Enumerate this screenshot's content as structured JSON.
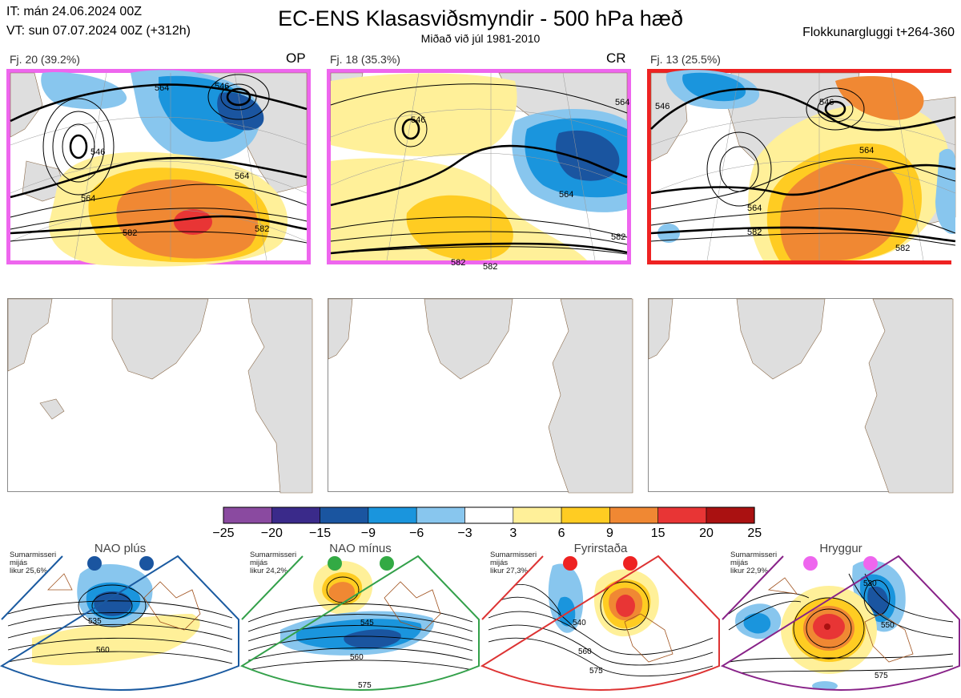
{
  "header": {
    "it_line": "IT: mán 24.06.2024 00Z",
    "vt_line": "VT: sun 07.07.2024 00Z  (+312h)",
    "title": "EC-ENS Klasasviðsmyndir - 500 hPa hæð",
    "subtitle": "Miðað við júl 1981-2010",
    "window": "Flokkunargluggi t+264-360"
  },
  "clusters": [
    {
      "label": "Fj. 20 (39.2%)",
      "tag": "OP",
      "border_color": "#ee66ee",
      "contour_labels": [
        "564",
        "546",
        "564",
        "546",
        "564",
        "582",
        "582"
      ]
    },
    {
      "label": "Fj. 18 (35.3%)",
      "tag": "CR",
      "border_color": "#ee66ee",
      "contour_labels": [
        "546",
        "564",
        "564",
        "582",
        "582",
        "582"
      ]
    },
    {
      "label": "Fj. 13 (25.5%)",
      "tag": "",
      "border_color": "#ee2222",
      "contour_labels": [
        "546",
        "546",
        "564",
        "564",
        "582",
        "582"
      ]
    }
  ],
  "colorbar": {
    "ticks": [
      "−25",
      "−20",
      "−15",
      "−9",
      "−6",
      "−3",
      "3",
      "6",
      "9",
      "15",
      "20",
      "25"
    ],
    "colors": [
      "#8a4aa0",
      "#3a2a8a",
      "#1a55a0",
      "#1a95dd",
      "#88c6ee",
      "#ffffff",
      "#fff099",
      "#ffcc22",
      "#f08833",
      "#e83535",
      "#aa1111"
    ]
  },
  "regimes": [
    {
      "name": "NAO plús",
      "note": [
        "Sumarmisseri",
        "mijás",
        "likur 25,6%"
      ],
      "border_color": "#1a5aa0",
      "dot_color": "#1a55a0",
      "contours": [
        "535",
        "560"
      ]
    },
    {
      "name": "NAO mínus",
      "note": [
        "Sumarmisseri",
        "mijás",
        "likur 24,2%"
      ],
      "border_color": "#33a04a",
      "dot_color": "#33aa44",
      "contours": [
        "545",
        "560",
        "575"
      ]
    },
    {
      "name": "Fyrirstaða",
      "note": [
        "Sumarmisseri",
        "mijás",
        "likur 27,3%"
      ],
      "border_color": "#dd3333",
      "dot_color": "#ee2222",
      "contours": [
        "540",
        "560",
        "575"
      ]
    },
    {
      "name": "Hryggur",
      "note": [
        "Sumarmisseri",
        "mijás",
        "likur 22,9%"
      ],
      "border_color": "#882288",
      "dot_color": "#ee66ee",
      "contours": [
        "530",
        "550",
        "575"
      ]
    }
  ]
}
